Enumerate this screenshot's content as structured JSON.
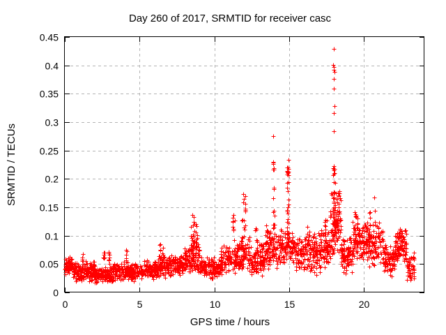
{
  "window": {
    "background": "#ffffff"
  },
  "chart_data": {
    "type": "scatter",
    "title": "Day 260 of 2017, SRMTID for receiver casc",
    "xlabel": "GPS time / hours",
    "ylabel": "SRMTID / TECUs",
    "xlim": [
      0,
      24.03
    ],
    "ylim": [
      0,
      0.45
    ],
    "xticks": [
      {
        "value": 0,
        "label": "0"
      },
      {
        "value": 5,
        "label": "5"
      },
      {
        "value": 10,
        "label": "10"
      },
      {
        "value": 15,
        "label": "15"
      },
      {
        "value": 20,
        "label": "20"
      }
    ],
    "yticks": [
      {
        "value": 0.0,
        "label": "0"
      },
      {
        "value": 0.05,
        "label": "0.05"
      },
      {
        "value": 0.1,
        "label": "0.1"
      },
      {
        "value": 0.15,
        "label": "0.15"
      },
      {
        "value": 0.2,
        "label": "0.2"
      },
      {
        "value": 0.25,
        "label": "0.25"
      },
      {
        "value": 0.3,
        "label": "0.3"
      },
      {
        "value": 0.35,
        "label": "0.35"
      },
      {
        "value": 0.4,
        "label": "0.4"
      },
      {
        "value": 0.45,
        "label": "0.45"
      }
    ],
    "grid": true,
    "grid_color": "#b3b3b3",
    "border_color": "#000000",
    "marker": "plus",
    "marker_color": "#ff0000",
    "marker_size": 7,
    "seed": 20170260,
    "segment_format": [
      "t_start_hours",
      "t_end_hours",
      "value_min_TECUs",
      "value_max_TECUs",
      "point_count"
    ],
    "baseline_segments": [
      [
        0.0,
        0.5,
        0.028,
        0.064,
        55
      ],
      [
        0.5,
        2.0,
        0.018,
        0.058,
        170
      ],
      [
        2.0,
        3.2,
        0.014,
        0.052,
        130
      ],
      [
        3.2,
        4.8,
        0.018,
        0.055,
        160
      ],
      [
        4.8,
        5.3,
        0.02,
        0.05,
        35
      ],
      [
        5.3,
        6.2,
        0.022,
        0.058,
        90
      ],
      [
        6.2,
        7.0,
        0.025,
        0.068,
        85
      ],
      [
        7.0,
        8.0,
        0.026,
        0.068,
        95
      ],
      [
        8.0,
        9.0,
        0.03,
        0.09,
        100
      ],
      [
        9.0,
        10.4,
        0.024,
        0.066,
        130
      ],
      [
        10.4,
        11.5,
        0.03,
        0.085,
        110
      ],
      [
        11.5,
        12.4,
        0.035,
        0.1,
        100
      ],
      [
        12.4,
        13.4,
        0.025,
        0.09,
        95
      ],
      [
        13.4,
        14.4,
        0.04,
        0.12,
        100
      ],
      [
        14.4,
        15.4,
        0.045,
        0.12,
        100
      ],
      [
        15.4,
        16.1,
        0.035,
        0.1,
        70
      ],
      [
        16.1,
        17.1,
        0.03,
        0.11,
        100
      ],
      [
        17.1,
        17.75,
        0.04,
        0.125,
        70
      ],
      [
        17.75,
        18.45,
        0.055,
        0.185,
        110
      ],
      [
        18.45,
        19.25,
        0.03,
        0.1,
        85
      ],
      [
        19.25,
        19.75,
        0.045,
        0.14,
        55
      ],
      [
        19.75,
        21.3,
        0.04,
        0.13,
        160
      ],
      [
        21.3,
        22.05,
        0.025,
        0.09,
        80
      ],
      [
        22.05,
        22.85,
        0.045,
        0.115,
        85
      ],
      [
        22.85,
        23.35,
        0.02,
        0.075,
        50
      ]
    ],
    "spike_format": [
      "t_center_hours",
      "t_spread_hours",
      "value_min_TECUs",
      "value_max_TECUs",
      "point_count"
    ],
    "spike_columns": [
      [
        0.15,
        0.25,
        0.04,
        0.068,
        12
      ],
      [
        1.2,
        0.1,
        0.055,
        0.072,
        5
      ],
      [
        2.6,
        0.15,
        0.05,
        0.073,
        6
      ],
      [
        2.95,
        0.1,
        0.052,
        0.075,
        6
      ],
      [
        4.1,
        0.15,
        0.05,
        0.077,
        6
      ],
      [
        6.45,
        0.3,
        0.055,
        0.088,
        12
      ],
      [
        8.55,
        0.25,
        0.07,
        0.139,
        22
      ],
      [
        8.8,
        0.15,
        0.075,
        0.124,
        10
      ],
      [
        11.3,
        0.2,
        0.09,
        0.138,
        10
      ],
      [
        11.95,
        0.25,
        0.095,
        0.178,
        16
      ],
      [
        12.8,
        0.15,
        0.075,
        0.123,
        7
      ],
      [
        13.95,
        0.12,
        0.085,
        0.16,
        14
      ],
      [
        13.95,
        0.08,
        0.15,
        0.245,
        9
      ],
      [
        14.9,
        0.15,
        0.09,
        0.15,
        10
      ],
      [
        14.9,
        0.12,
        0.15,
        0.238,
        18
      ],
      [
        16.25,
        0.2,
        0.075,
        0.116,
        9
      ],
      [
        17.45,
        0.2,
        0.07,
        0.13,
        10
      ],
      [
        18.0,
        0.12,
        0.1,
        0.228,
        26
      ],
      [
        19.45,
        0.2,
        0.08,
        0.145,
        12
      ],
      [
        20.3,
        0.25,
        0.08,
        0.147,
        12
      ],
      [
        22.4,
        0.3,
        0.075,
        0.113,
        14
      ]
    ],
    "outlier_point_format": [
      "t_hours",
      "value_TECUs"
    ],
    "outlier_points": [
      [
        13.92,
        0.276
      ],
      [
        17.98,
        0.429
      ],
      [
        17.95,
        0.401
      ],
      [
        17.99,
        0.397
      ],
      [
        17.97,
        0.392
      ],
      [
        18.01,
        0.388
      ],
      [
        17.98,
        0.376
      ],
      [
        17.99,
        0.359
      ],
      [
        18.0,
        0.328
      ],
      [
        17.97,
        0.316
      ],
      [
        17.99,
        0.284
      ],
      [
        17.99,
        0.222
      ],
      [
        18.0,
        0.218
      ],
      [
        20.68,
        0.167
      ],
      [
        20.71,
        0.144
      ]
    ]
  }
}
